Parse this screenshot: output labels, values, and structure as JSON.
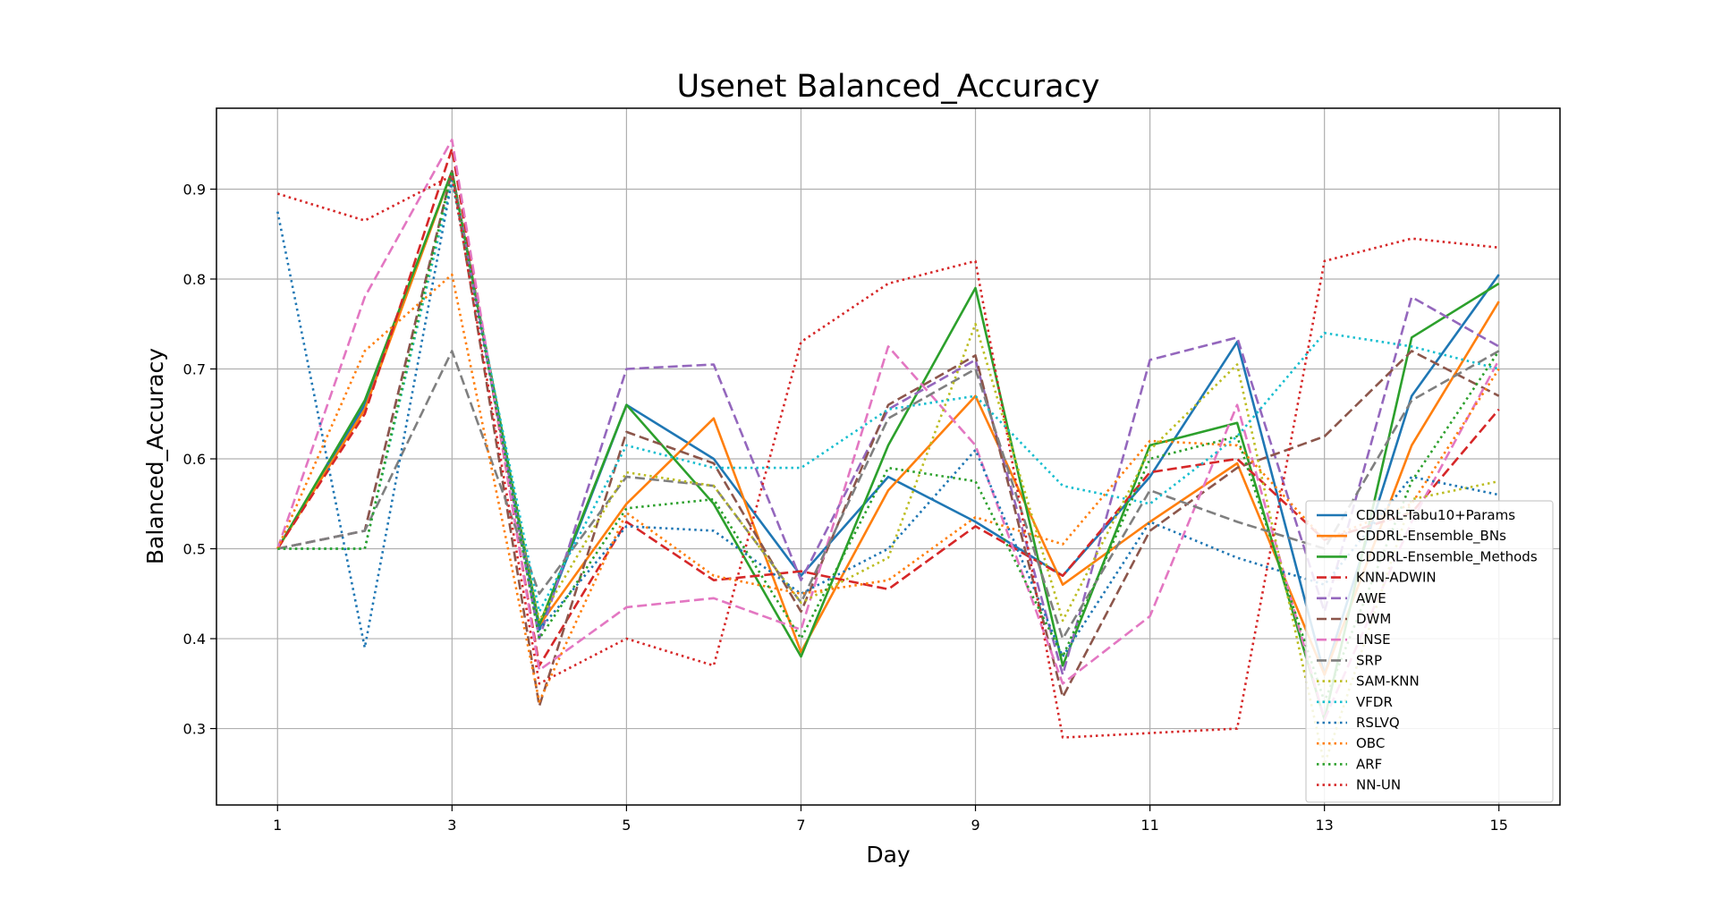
{
  "chart_data": {
    "type": "line",
    "title": "Usenet Balanced_Accuracy",
    "xlabel": "Day",
    "ylabel": "Balanced_Accuracy",
    "x": [
      1,
      2,
      3,
      4,
      5,
      6,
      7,
      8,
      9,
      10,
      11,
      12,
      13,
      14,
      15
    ],
    "xticks": [
      "1",
      "3",
      "5",
      "7",
      "9",
      "11",
      "13",
      "15"
    ],
    "yticks": [
      "0.3",
      "0.4",
      "0.5",
      "0.6",
      "0.7",
      "0.8",
      "0.9"
    ],
    "xlim": [
      0.3,
      15.7
    ],
    "ylim": [
      0.215,
      0.99
    ],
    "grid": true,
    "legend_position": "lower-right",
    "series": [
      {
        "name": "CDDRL-Tabu10+Params",
        "color": "#1f77b4",
        "style": "solid",
        "values": [
          0.5,
          0.66,
          0.92,
          0.41,
          0.66,
          0.6,
          0.47,
          0.58,
          0.53,
          0.47,
          0.58,
          0.73,
          0.36,
          0.67,
          0.805
        ]
      },
      {
        "name": "CDDRL-Ensemble_BNs",
        "color": "#ff7f0e",
        "style": "solid",
        "values": [
          0.5,
          0.655,
          0.92,
          0.415,
          0.55,
          0.645,
          0.385,
          0.565,
          0.67,
          0.46,
          0.53,
          0.595,
          0.36,
          0.615,
          0.775
        ]
      },
      {
        "name": "CDDRL-Ensemble_Methods",
        "color": "#2ca02c",
        "style": "solid",
        "values": [
          0.5,
          0.665,
          0.92,
          0.415,
          0.66,
          0.55,
          0.38,
          0.615,
          0.79,
          0.37,
          0.615,
          0.64,
          0.31,
          0.735,
          0.795
        ]
      },
      {
        "name": "KNN-ADWIN",
        "color": "#d62728",
        "style": "dashed",
        "values": [
          0.5,
          0.65,
          0.945,
          0.37,
          0.53,
          0.465,
          0.475,
          0.455,
          0.525,
          0.47,
          0.585,
          0.6,
          0.51,
          0.54,
          0.655
        ]
      },
      {
        "name": "AWE",
        "color": "#9467bd",
        "style": "dashed",
        "values": [
          0.5,
          0.52,
          0.92,
          0.4,
          0.7,
          0.705,
          0.465,
          0.655,
          0.71,
          0.36,
          0.71,
          0.735,
          0.43,
          0.78,
          0.725
        ]
      },
      {
        "name": "DWM",
        "color": "#8c564b",
        "style": "dashed",
        "values": [
          0.5,
          0.52,
          0.92,
          0.325,
          0.63,
          0.595,
          0.43,
          0.66,
          0.715,
          0.335,
          0.52,
          0.59,
          0.625,
          0.72,
          0.67
        ]
      },
      {
        "name": "LNSE",
        "color": "#e377c2",
        "style": "dashed",
        "values": [
          0.5,
          0.78,
          0.955,
          0.365,
          0.435,
          0.445,
          0.41,
          0.725,
          0.615,
          0.35,
          0.425,
          0.66,
          0.31,
          0.53,
          0.71
        ]
      },
      {
        "name": "SRP",
        "color": "#7f7f7f",
        "style": "dashed",
        "values": [
          0.5,
          0.52,
          0.72,
          0.45,
          0.58,
          0.57,
          0.44,
          0.645,
          0.7,
          0.4,
          0.565,
          0.53,
          0.5,
          0.665,
          0.72
        ]
      },
      {
        "name": "SAM-KNN",
        "color": "#bcbd22",
        "style": "dotted",
        "values": [
          0.5,
          0.5,
          0.91,
          0.42,
          0.585,
          0.57,
          0.44,
          0.49,
          0.75,
          0.42,
          0.61,
          0.705,
          0.26,
          0.555,
          0.575
        ]
      },
      {
        "name": "VFDR",
        "color": "#17becf",
        "style": "dotted",
        "values": [
          0.5,
          0.5,
          0.91,
          0.43,
          0.615,
          0.59,
          0.59,
          0.655,
          0.67,
          0.57,
          0.55,
          0.625,
          0.74,
          0.725,
          0.7
        ]
      },
      {
        "name": "RSLVQ",
        "color": "#1f77b4",
        "style": "dotted",
        "values": [
          0.875,
          0.39,
          0.91,
          0.41,
          0.525,
          0.52,
          0.45,
          0.5,
          0.61,
          0.38,
          0.53,
          0.49,
          0.46,
          0.58,
          0.56
        ]
      },
      {
        "name": "OBC",
        "color": "#ff7f0e",
        "style": "dotted",
        "values": [
          0.5,
          0.72,
          0.805,
          0.33,
          0.54,
          0.47,
          0.45,
          0.465,
          0.535,
          0.505,
          0.62,
          0.615,
          0.51,
          0.55,
          0.7
        ]
      },
      {
        "name": "ARF",
        "color": "#2ca02c",
        "style": "dotted",
        "values": [
          0.5,
          0.5,
          0.92,
          0.4,
          0.545,
          0.555,
          0.4,
          0.59,
          0.575,
          0.38,
          0.6,
          0.625,
          0.33,
          0.575,
          0.72
        ]
      },
      {
        "name": "NN-UN",
        "color": "#d62728",
        "style": "dotted",
        "values": [
          0.895,
          0.865,
          0.915,
          0.35,
          0.4,
          0.37,
          0.73,
          0.795,
          0.82,
          0.29,
          0.295,
          0.3,
          0.82,
          0.845,
          0.835
        ]
      }
    ]
  }
}
